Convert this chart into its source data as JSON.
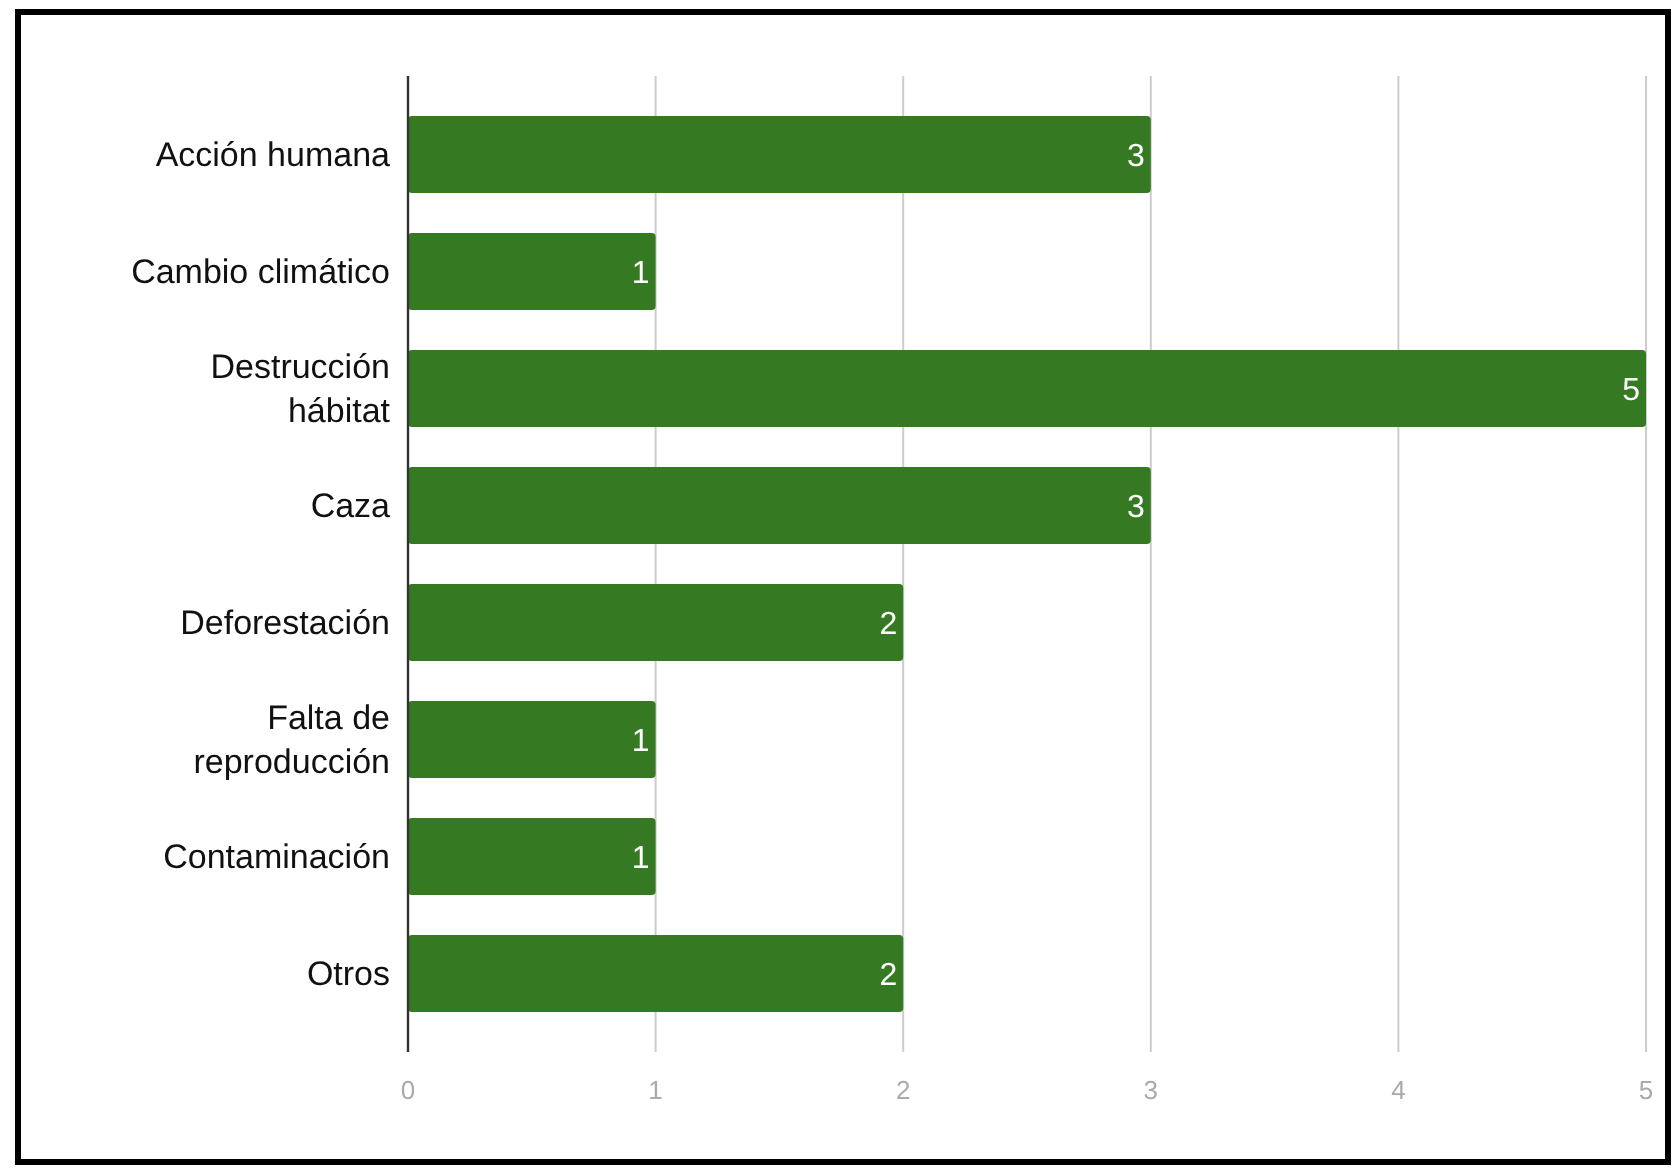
{
  "chart_data": {
    "type": "bar",
    "orientation": "horizontal",
    "categories": [
      "Acción humana",
      "Cambio climático",
      "Destrucción hábitat",
      "Caza",
      "Deforestación",
      "Falta de reproducción",
      "Contaminación",
      "Otros"
    ],
    "values": [
      3,
      1,
      5,
      3,
      2,
      1,
      1,
      2
    ],
    "color": "#357a22",
    "xlim": [
      0,
      5
    ],
    "xticks": [
      0,
      1,
      2,
      3,
      4,
      5
    ],
    "grid": "x",
    "data_labels": true
  }
}
